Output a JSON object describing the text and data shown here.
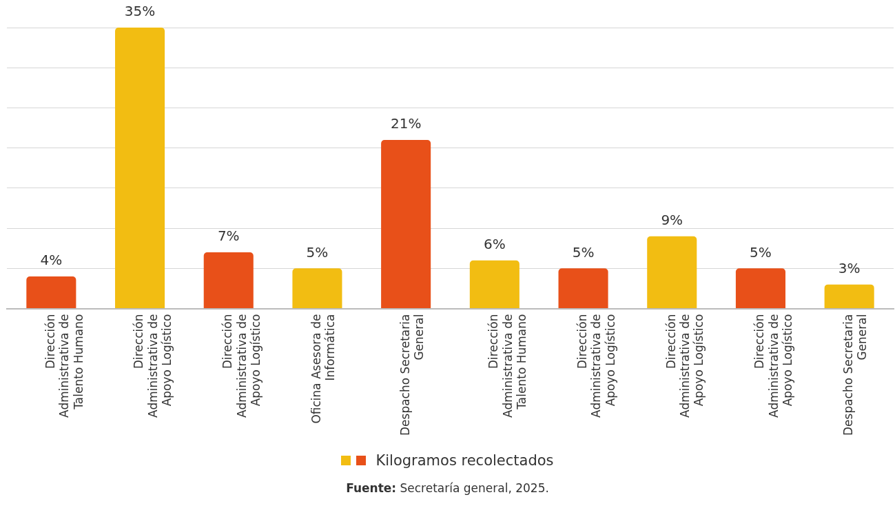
{
  "chart_data": {
    "type": "bar",
    "categories": [
      "Dirección\nAdministrativa de\nTalento Humano",
      "Dirección\nAdministrativa de\nApoyo Logístico",
      "Dirección\nAdministrativa de\nApoyo Logístico",
      "Oficina Asesora de\nInformática",
      "Despacho Secretaria\nGeneral",
      "Dirección\nAdministrativa de\nTalento Humano",
      "Dirección\nAdministrativa de\nApoyo Logístico",
      "Dirección\nAdministrativa de\nApoyo Logístico",
      "Dirección\nAdministrativa de\nApoyo Logístico",
      "Despacho Secretaria\nGeneral"
    ],
    "series": [
      {
        "name": "Kilogramos recolectados",
        "values": [
          4,
          35,
          7,
          5,
          21,
          6,
          5,
          9,
          5,
          3
        ],
        "colors": [
          "#e85019",
          "#f2bd12",
          "#e85019",
          "#f2bd12",
          "#e85019",
          "#f2bd12",
          "#e85019",
          "#f2bd12",
          "#e85019",
          "#f2bd12"
        ],
        "value_labels": [
          "4%",
          "35%",
          "7%",
          "5%",
          "21%",
          "6%",
          "5%",
          "9%",
          "5%",
          "3%"
        ]
      }
    ],
    "ylim": [
      0,
      35
    ],
    "yticks": [
      {
        "value": 0,
        "label": null
      },
      {
        "value": 5,
        "label": null
      },
      {
        "value": 10,
        "label": null
      },
      {
        "value": 15,
        "label": null
      },
      {
        "value": 20,
        "label": null
      },
      {
        "value": 25,
        "label": null
      },
      {
        "value": 30,
        "label": null
      },
      {
        "value": 35,
        "label": null
      }
    ],
    "tick_labels": "x",
    "grid": "y",
    "legend": "bottom",
    "annotations": [
      "Fuente: Secretaría general, 2025."
    ]
  }
}
